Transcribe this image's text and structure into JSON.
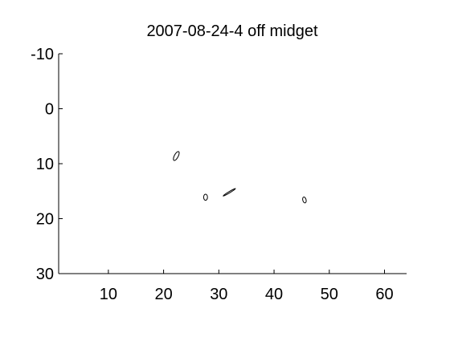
{
  "chart_data": {
    "type": "scatter",
    "title": "2007-08-24-4 off midget",
    "xlabel": "",
    "ylabel": "",
    "xlim": [
      1,
      64
    ],
    "ylim": [
      -10,
      30
    ],
    "y_reversed": true,
    "xticks": [
      10,
      20,
      30,
      40,
      50,
      60
    ],
    "yticks": [
      -10,
      0,
      10,
      20,
      30
    ],
    "grid": false,
    "legend": "none",
    "line_color": "#000000",
    "ellipses": [
      {
        "cx": 22.3,
        "cy": 8.6,
        "rx": 0.9,
        "ry": 0.35,
        "angle_deg": -62
      },
      {
        "cx": 27.6,
        "cy": 16.1,
        "rx": 0.55,
        "ry": 0.35,
        "angle_deg": 90
      },
      {
        "cx": 31.9,
        "cy": 15.2,
        "rx": 1.3,
        "ry": 0.12,
        "angle_deg": -31
      },
      {
        "cx": 45.5,
        "cy": 16.6,
        "rx": 0.55,
        "ry": 0.3,
        "angle_deg": 75
      }
    ]
  }
}
